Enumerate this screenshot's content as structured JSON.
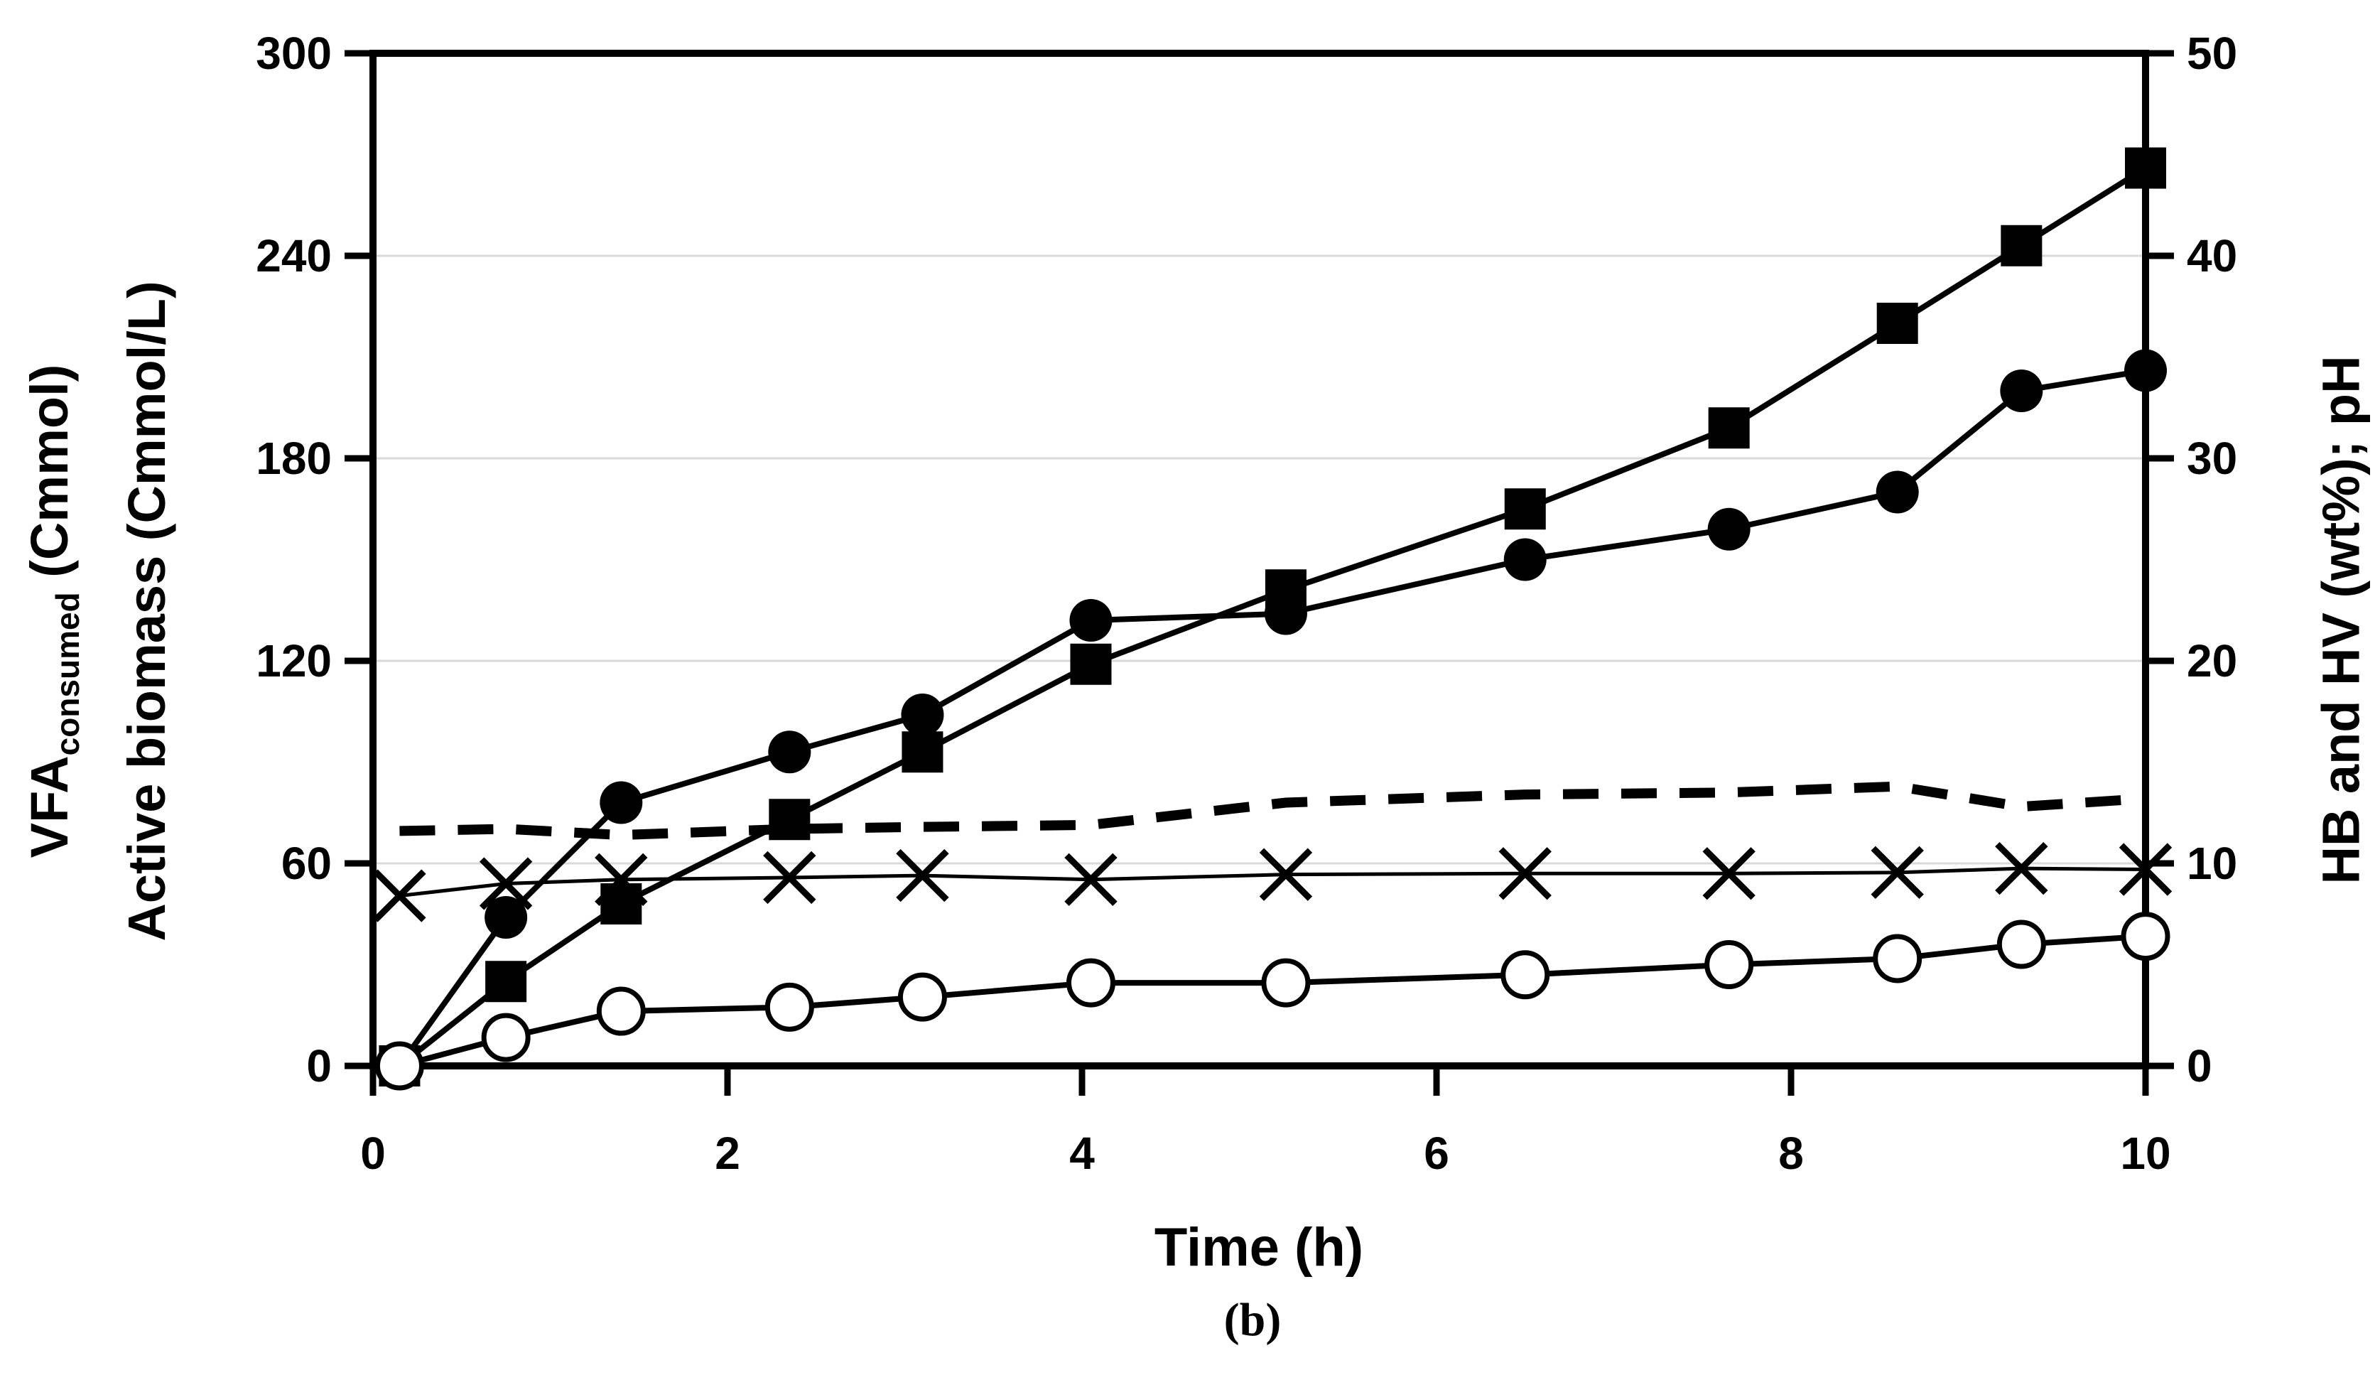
{
  "labels": {
    "left_line1_main": "VFA",
    "left_line1_sub": "consumed",
    "left_line1_rest": " (Cmmol)",
    "left_line2": "Active biomass (Cmmol/L)",
    "right": "HB and HV (wt%); pH",
    "x": "Time (h)",
    "caption": "(b)"
  },
  "colors": {
    "foreground": "#000000",
    "gridline": "#d9d9d9",
    "background": "#ffffff"
  },
  "chart_data": {
    "type": "line",
    "title": "",
    "xlabel": "Time (h)",
    "ylabel_left": "VFA consumed (Cmmol); Active biomass (Cmmol/L)",
    "ylabel_right": "HB and HV (wt%); pH",
    "x_range": [
      0,
      10
    ],
    "y_left_range": [
      0,
      300
    ],
    "y_right_range": [
      0,
      50
    ],
    "x_ticks": [
      0,
      2,
      4,
      6,
      8,
      10
    ],
    "y_left_ticks": [
      300,
      240,
      180,
      120,
      60,
      0
    ],
    "y_right_ticks": [
      50,
      40,
      30,
      20,
      10,
      0
    ],
    "grid": "horizontal-only",
    "legend": "none",
    "x": [
      0.15,
      0.75,
      1.4,
      2.35,
      3.1,
      4.05,
      5.15,
      6.5,
      7.65,
      8.6,
      9.3,
      10
    ],
    "series": [
      {
        "name": "VFA consumed",
        "axis": "left",
        "marker": "filled-square",
        "line": "solid",
        "values": [
          0,
          25,
          48,
          73,
          93,
          119,
          141,
          165,
          189,
          220,
          243,
          266
        ]
      },
      {
        "name": "Active biomass",
        "axis": "left",
        "marker": "filled-circle",
        "line": "solid",
        "values": [
          0,
          44,
          78,
          93,
          104,
          132,
          134,
          150,
          159,
          170,
          200,
          206
        ]
      },
      {
        "name": "HB",
        "axis": "right",
        "marker": "none",
        "line": "dashed",
        "values": [
          11.6,
          11.7,
          11.4,
          11.7,
          11.8,
          11.9,
          13.0,
          13.4,
          13.5,
          13.8,
          12.8,
          13.2
        ]
      },
      {
        "name": "pH",
        "axis": "right",
        "marker": "x",
        "line": "solid-thin",
        "values": [
          8.4,
          9.0,
          9.2,
          9.3,
          9.4,
          9.2,
          9.45,
          9.5,
          9.5,
          9.55,
          9.75,
          9.7
        ]
      },
      {
        "name": "HV",
        "axis": "right",
        "marker": "open-circle",
        "line": "solid",
        "values": [
          0,
          1.4,
          2.7,
          2.9,
          3.4,
          4.1,
          4.1,
          4.5,
          5.0,
          5.3,
          6.0,
          6.4
        ]
      }
    ]
  }
}
